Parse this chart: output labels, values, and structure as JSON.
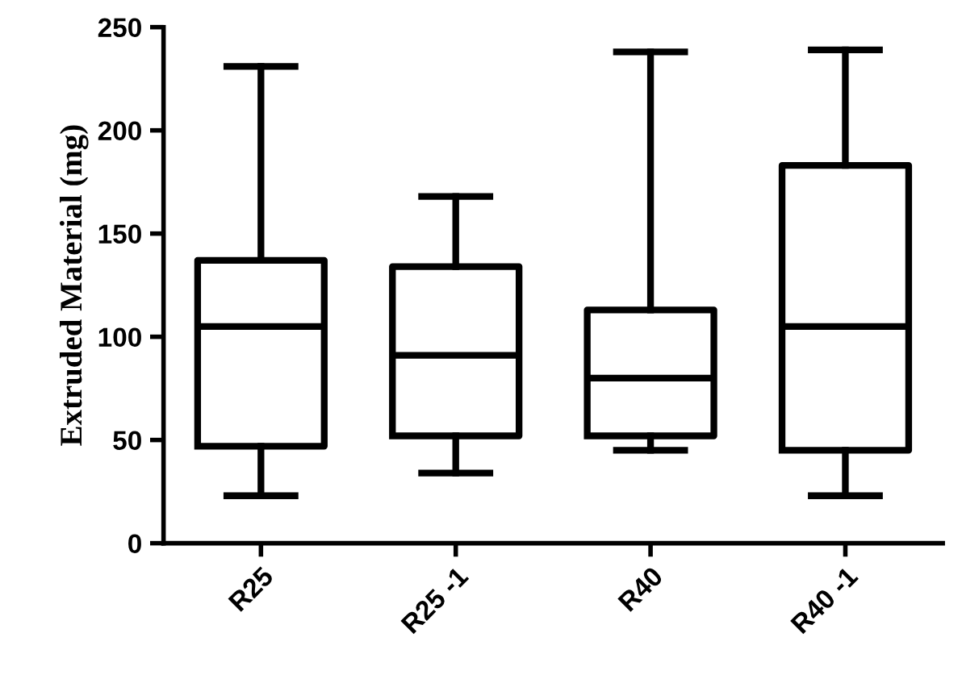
{
  "chart_data": {
    "type": "box",
    "ylabel": "Extruded Material (mg)",
    "categories": [
      "R25",
      "R25 -1",
      "R40",
      "R40 -1"
    ],
    "boxes": [
      {
        "low": 23,
        "q1": 47,
        "median": 105,
        "q3": 137,
        "high": 231
      },
      {
        "low": 34,
        "q1": 52,
        "median": 91,
        "q3": 134,
        "high": 168
      },
      {
        "low": 45,
        "q1": 52,
        "median": 80,
        "q3": 113,
        "high": 238
      },
      {
        "low": 23,
        "q1": 45,
        "median": 105,
        "q3": 183,
        "high": 239
      }
    ],
    "color": "#000000",
    "ylim": [
      0,
      250
    ],
    "yticks": [
      0,
      50,
      100,
      150,
      200,
      250
    ],
    "grid": false
  }
}
